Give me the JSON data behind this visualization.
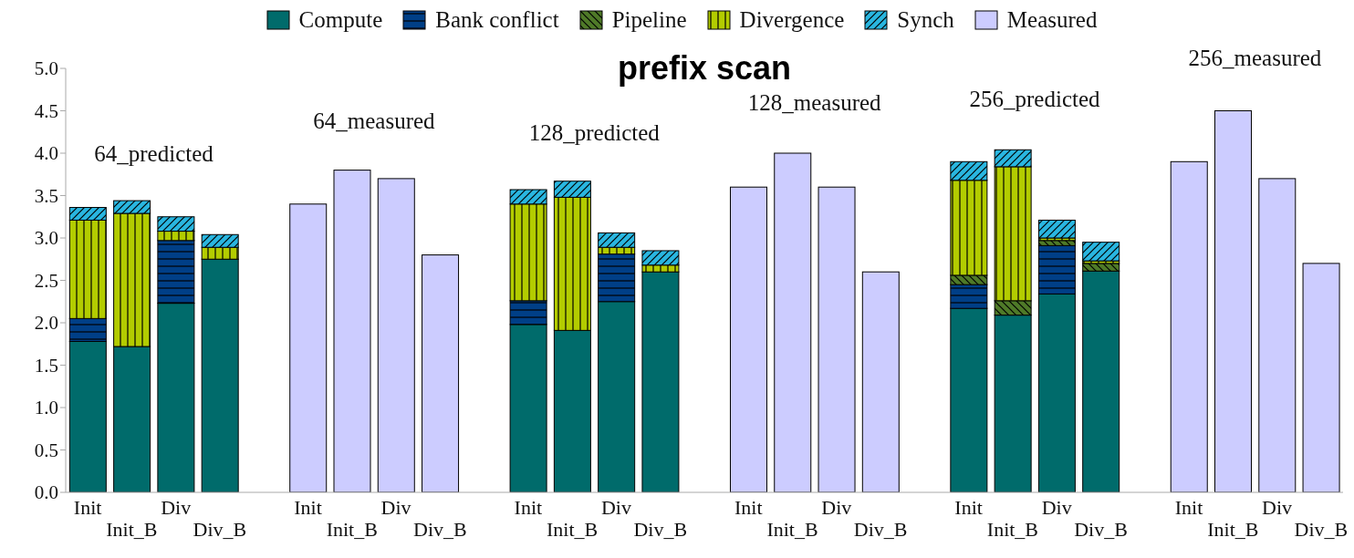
{
  "chart_data": {
    "type": "bar",
    "stacked": true,
    "title": "prefix scan",
    "categories": [
      "Init",
      "Init_B",
      "Div",
      "Div_B",
      null,
      "Init",
      "Init_B",
      "Div",
      "Div_B",
      null,
      "Init",
      "Init_B",
      "Div",
      "Div_B",
      null,
      "Init",
      "Init_B",
      "Div",
      "Div_B",
      null,
      "Init",
      "Init_B",
      "Div",
      "Div_B",
      null,
      "Init",
      "Init_B",
      "Div",
      "Div_B"
    ],
    "series": [
      {
        "name": "Compute",
        "color": "#006b6b",
        "values": [
          1.78,
          1.72,
          2.23,
          2.75,
          null,
          null,
          null,
          null,
          null,
          null,
          1.98,
          1.91,
          2.25,
          2.6,
          null,
          null,
          null,
          null,
          null,
          null,
          2.17,
          2.09,
          2.34,
          2.61,
          null,
          null,
          null,
          null,
          null
        ]
      },
      {
        "name": "Bank conflict",
        "color": "#003f87",
        "values": [
          0.27,
          null,
          0.74,
          null,
          null,
          null,
          null,
          null,
          null,
          null,
          0.28,
          null,
          0.56,
          null,
          null,
          null,
          null,
          null,
          null,
          null,
          0.28,
          null,
          0.57,
          null,
          null,
          null,
          null,
          null,
          null
        ]
      },
      {
        "name": "Pipeline",
        "color": "#4f7a28",
        "values": [
          null,
          null,
          null,
          null,
          null,
          null,
          null,
          null,
          null,
          null,
          null,
          null,
          null,
          null,
          null,
          null,
          null,
          null,
          null,
          null,
          0.11,
          0.17,
          0.06,
          0.09,
          null,
          null,
          null,
          null,
          null
        ]
      },
      {
        "name": "Divergence",
        "color": "#b3cc00",
        "values": [
          1.16,
          1.57,
          0.11,
          0.14,
          null,
          null,
          null,
          null,
          null,
          null,
          1.14,
          1.57,
          0.08,
          0.08,
          null,
          null,
          null,
          null,
          null,
          null,
          1.12,
          1.58,
          0.03,
          0.03,
          null,
          null,
          null,
          null,
          null
        ]
      },
      {
        "name": "Synch",
        "color": "#29b6e0",
        "values": [
          0.15,
          0.15,
          0.17,
          0.15,
          null,
          null,
          null,
          null,
          null,
          null,
          0.17,
          0.19,
          0.17,
          0.17,
          null,
          null,
          null,
          null,
          null,
          null,
          0.22,
          0.2,
          0.21,
          0.22,
          null,
          null,
          null,
          null,
          null
        ]
      },
      {
        "name": "Measured",
        "color": "#ccccff",
        "values": [
          null,
          null,
          null,
          null,
          null,
          3.4,
          3.8,
          3.7,
          2.8,
          null,
          null,
          null,
          null,
          null,
          null,
          3.6,
          4.0,
          3.6,
          2.6,
          null,
          null,
          null,
          null,
          null,
          null,
          3.9,
          4.5,
          3.7,
          2.7
        ]
      }
    ],
    "ylim": [
      0,
      5
    ],
    "yticks": [
      {
        "value": 0,
        "label": "0.0"
      },
      {
        "value": 0.5,
        "label": "0.5"
      },
      {
        "value": 1,
        "label": "1.0"
      },
      {
        "value": 1.5,
        "label": "1.5"
      },
      {
        "value": 2,
        "label": "2.0"
      },
      {
        "value": 2.5,
        "label": "2.5"
      },
      {
        "value": 3,
        "label": "3.0"
      },
      {
        "value": 3.5,
        "label": "3.5"
      },
      {
        "value": 4,
        "label": "4.0"
      },
      {
        "value": 4.5,
        "label": "4.5"
      },
      {
        "value": 5,
        "label": "5.0"
      }
    ],
    "grid": false,
    "legend": "top",
    "annotations": [
      "64_predicted",
      "64_measured",
      "128_predicted",
      "128_measured",
      "256_predicted",
      "256_measured"
    ]
  }
}
